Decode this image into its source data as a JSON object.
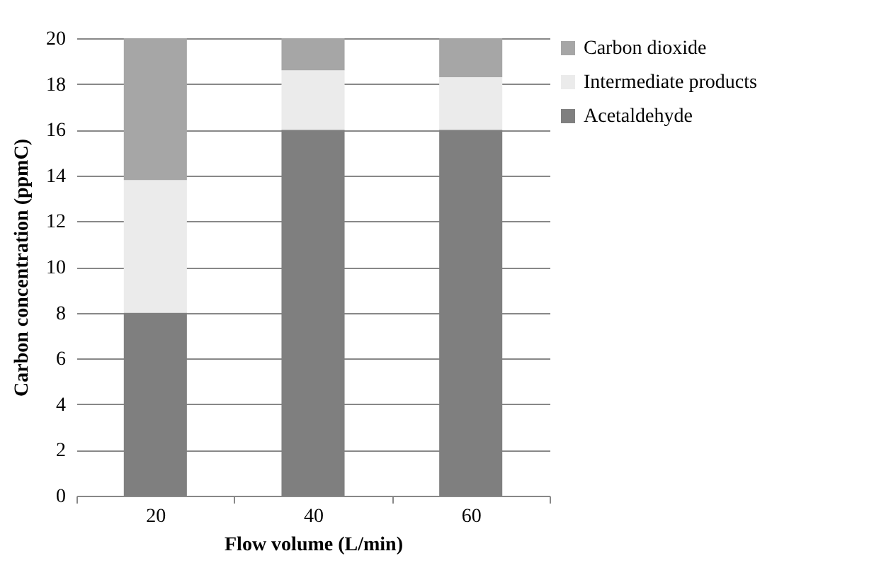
{
  "chart_data": {
    "type": "bar",
    "stacked": true,
    "xlabel": "Flow volume (L/min)",
    "ylabel": "Carbon concentration (ppmC)",
    "categories": [
      "20",
      "40",
      "60"
    ],
    "series": [
      {
        "name": "Acetaldehyde",
        "color": "#7f7f7f",
        "values": [
          8,
          16,
          16
        ]
      },
      {
        "name": "Intermediate products",
        "color": "#ebebeb",
        "values": [
          5.8,
          2.6,
          2.3
        ]
      },
      {
        "name": "Carbon dioxide",
        "color": "#a6a6a6",
        "values": [
          6.2,
          1.4,
          1.7
        ]
      }
    ],
    "ylim": [
      0,
      20
    ],
    "yticks": [
      0,
      2,
      4,
      6,
      8,
      10,
      12,
      14,
      16,
      18,
      20
    ],
    "grid": "y",
    "legend": "right"
  }
}
